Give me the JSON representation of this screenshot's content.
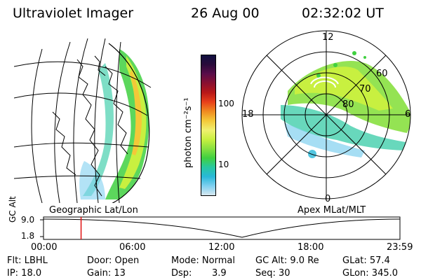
{
  "header": {
    "title": "Ultraviolet Imager",
    "date": "26 Aug 00",
    "time": "02:32:02 UT"
  },
  "left_panel": {
    "caption": "Geographic Lat/Lon"
  },
  "right_panel": {
    "caption": "Apex MLat/MLT",
    "mlt_labels": {
      "top": "12",
      "left": "18",
      "right": "6",
      "bottom": "0"
    },
    "lat_labels": [
      "60",
      "70",
      "80"
    ]
  },
  "colorbar": {
    "unit_label": "photon cm⁻²s⁻¹",
    "ticks": [
      "100",
      "10"
    ],
    "colors": [
      "#101040",
      "#2a0a3a",
      "#5a0d4a",
      "#8a1030",
      "#b81818",
      "#e8401a",
      "#f08a20",
      "#f4c838",
      "#f0f070",
      "#c8f040",
      "#88e040",
      "#40d040",
      "#28c8a0",
      "#28b8d8",
      "#80d0f0",
      "#d8e8f0"
    ]
  },
  "timeline": {
    "ylabel": "GC Alt",
    "y_ticks": [
      "9.0",
      "1.8"
    ],
    "x_ticks": [
      "00:00",
      "06:00",
      "12:00",
      "18:00",
      "23:59"
    ],
    "marker_hour": 2.53
  },
  "footer": {
    "flt": "Flt: LBHL",
    "ip": "IP: 18.0",
    "door": "Door: Open",
    "gain": "Gain: 13",
    "mode": "Mode: Normal",
    "dsp_label": "Dsp:",
    "dsp_value": "3.9",
    "gcalt": "GC Alt: 9.0 Re",
    "seq": "Seq: 30",
    "glat": "GLat: 57.4",
    "glon": "GLon: 345.0"
  }
}
